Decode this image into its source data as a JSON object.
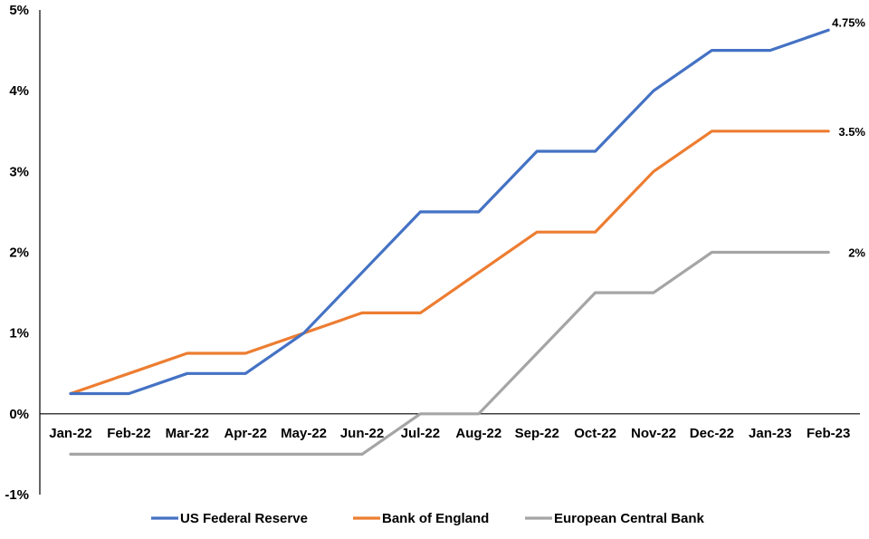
{
  "chart_data": {
    "type": "line",
    "categories": [
      "Jan-22",
      "Feb-22",
      "Mar-22",
      "Apr-22",
      "May-22",
      "Jun-22",
      "Jul-22",
      "Aug-22",
      "Sep-22",
      "Oct-22",
      "Nov-22",
      "Dec-22",
      "Jan-23",
      "Feb-23"
    ],
    "series": [
      {
        "name": "US Federal Reserve",
        "color": "#4472C4",
        "values": [
          0.25,
          0.25,
          0.5,
          0.5,
          1.0,
          1.75,
          2.5,
          2.5,
          3.25,
          3.25,
          4.0,
          4.5,
          4.5,
          4.75
        ],
        "end_label": "4.75%"
      },
      {
        "name": "Bank of England",
        "color": "#ED7D31",
        "values": [
          0.25,
          0.5,
          0.75,
          0.75,
          1.0,
          1.25,
          1.25,
          1.75,
          2.25,
          2.25,
          3.0,
          3.5,
          3.5,
          3.5
        ],
        "end_label": "3.5%"
      },
      {
        "name": "European Central Bank",
        "color": "#A5A5A5",
        "values": [
          -0.5,
          -0.5,
          -0.5,
          -0.5,
          -0.5,
          -0.5,
          0.0,
          0.0,
          0.75,
          1.5,
          1.5,
          2.0,
          2.0,
          2.0
        ],
        "end_label": "2%"
      }
    ],
    "ylim": [
      -1,
      5
    ],
    "yticks": [
      -1,
      0,
      1,
      2,
      3,
      4,
      5
    ],
    "ytick_labels": [
      "-1%",
      "0%",
      "1%",
      "2%",
      "3%",
      "4%",
      "5%"
    ],
    "grid": false,
    "legend_position": "bottom"
  }
}
